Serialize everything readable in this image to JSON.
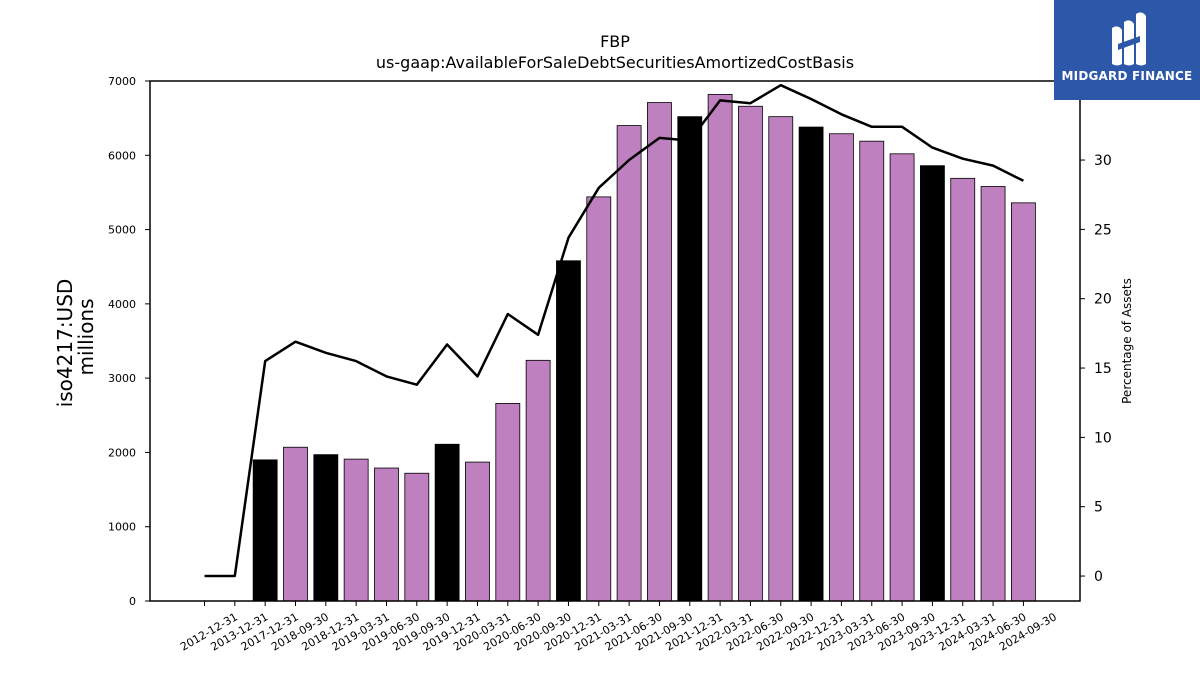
{
  "chart_data": {
    "type": "bar",
    "title": "FBP",
    "subtitle": "us-gaap:AvailableForSaleDebtSecuritiesAmortizedCostBasis",
    "ylabel": "iso4217:USD",
    "ylabel_unit": "millions",
    "y2label": "Percentage of Assets",
    "ylim": [
      0,
      7000
    ],
    "y2lim": [
      -1.8,
      35.7
    ],
    "yticks": [
      0,
      1000,
      2000,
      3000,
      4000,
      5000,
      6000,
      7000
    ],
    "y2ticks": [
      0,
      5,
      10,
      15,
      20,
      25,
      30,
      35
    ],
    "grid": false,
    "categories": [
      "2012-12-31",
      "2013-12-31",
      "2017-12-31",
      "2018-09-30",
      "2018-12-31",
      "2019-03-31",
      "2019-06-30",
      "2019-09-30",
      "2019-12-31",
      "2020-03-31",
      "2020-06-30",
      "2020-09-30",
      "2020-12-31",
      "2021-03-31",
      "2021-06-30",
      "2021-09-30",
      "2021-12-31",
      "2022-03-31",
      "2022-06-30",
      "2022-09-30",
      "2022-12-31",
      "2023-03-31",
      "2023-06-30",
      "2023-09-30",
      "2023-12-31",
      "2024-03-31",
      "2024-06-30",
      "2024-09-30"
    ],
    "series": [
      {
        "type": "bar",
        "values": [
          0,
          0,
          1900,
          2070,
          1970,
          1910,
          1790,
          1720,
          2110,
          1870,
          2660,
          3240,
          4580,
          5440,
          6400,
          6710,
          6520,
          6820,
          6660,
          6520,
          6380,
          6290,
          6190,
          6020,
          5860,
          5690,
          5580,
          5360
        ],
        "colors": [
          "#000000",
          "#000000",
          "#000000",
          "#bf80bf",
          "#000000",
          "#bf80bf",
          "#bf80bf",
          "#bf80bf",
          "#000000",
          "#bf80bf",
          "#bf80bf",
          "#bf80bf",
          "#000000",
          "#bf80bf",
          "#bf80bf",
          "#bf80bf",
          "#000000",
          "#bf80bf",
          "#bf80bf",
          "#bf80bf",
          "#000000",
          "#bf80bf",
          "#bf80bf",
          "#bf80bf",
          "#000000",
          "#bf80bf",
          "#bf80bf",
          "#bf80bf"
        ]
      },
      {
        "type": "line",
        "axis": "right",
        "values": [
          0,
          0,
          15.5,
          16.9,
          16.1,
          15.5,
          14.4,
          13.8,
          16.7,
          14.4,
          18.9,
          17.4,
          24.4,
          28.0,
          30.0,
          31.6,
          31.4,
          34.3,
          34.1,
          35.4,
          34.4,
          33.3,
          32.4,
          32.4,
          30.9,
          30.1,
          29.6,
          28.5
        ]
      }
    ],
    "bar_colors": {
      "year_end": "#000000",
      "quarter": "#bf80bf"
    },
    "line_color": "#000000"
  },
  "logo": {
    "text": "MIDGARD FINANCE",
    "background": "#2d57a8"
  }
}
